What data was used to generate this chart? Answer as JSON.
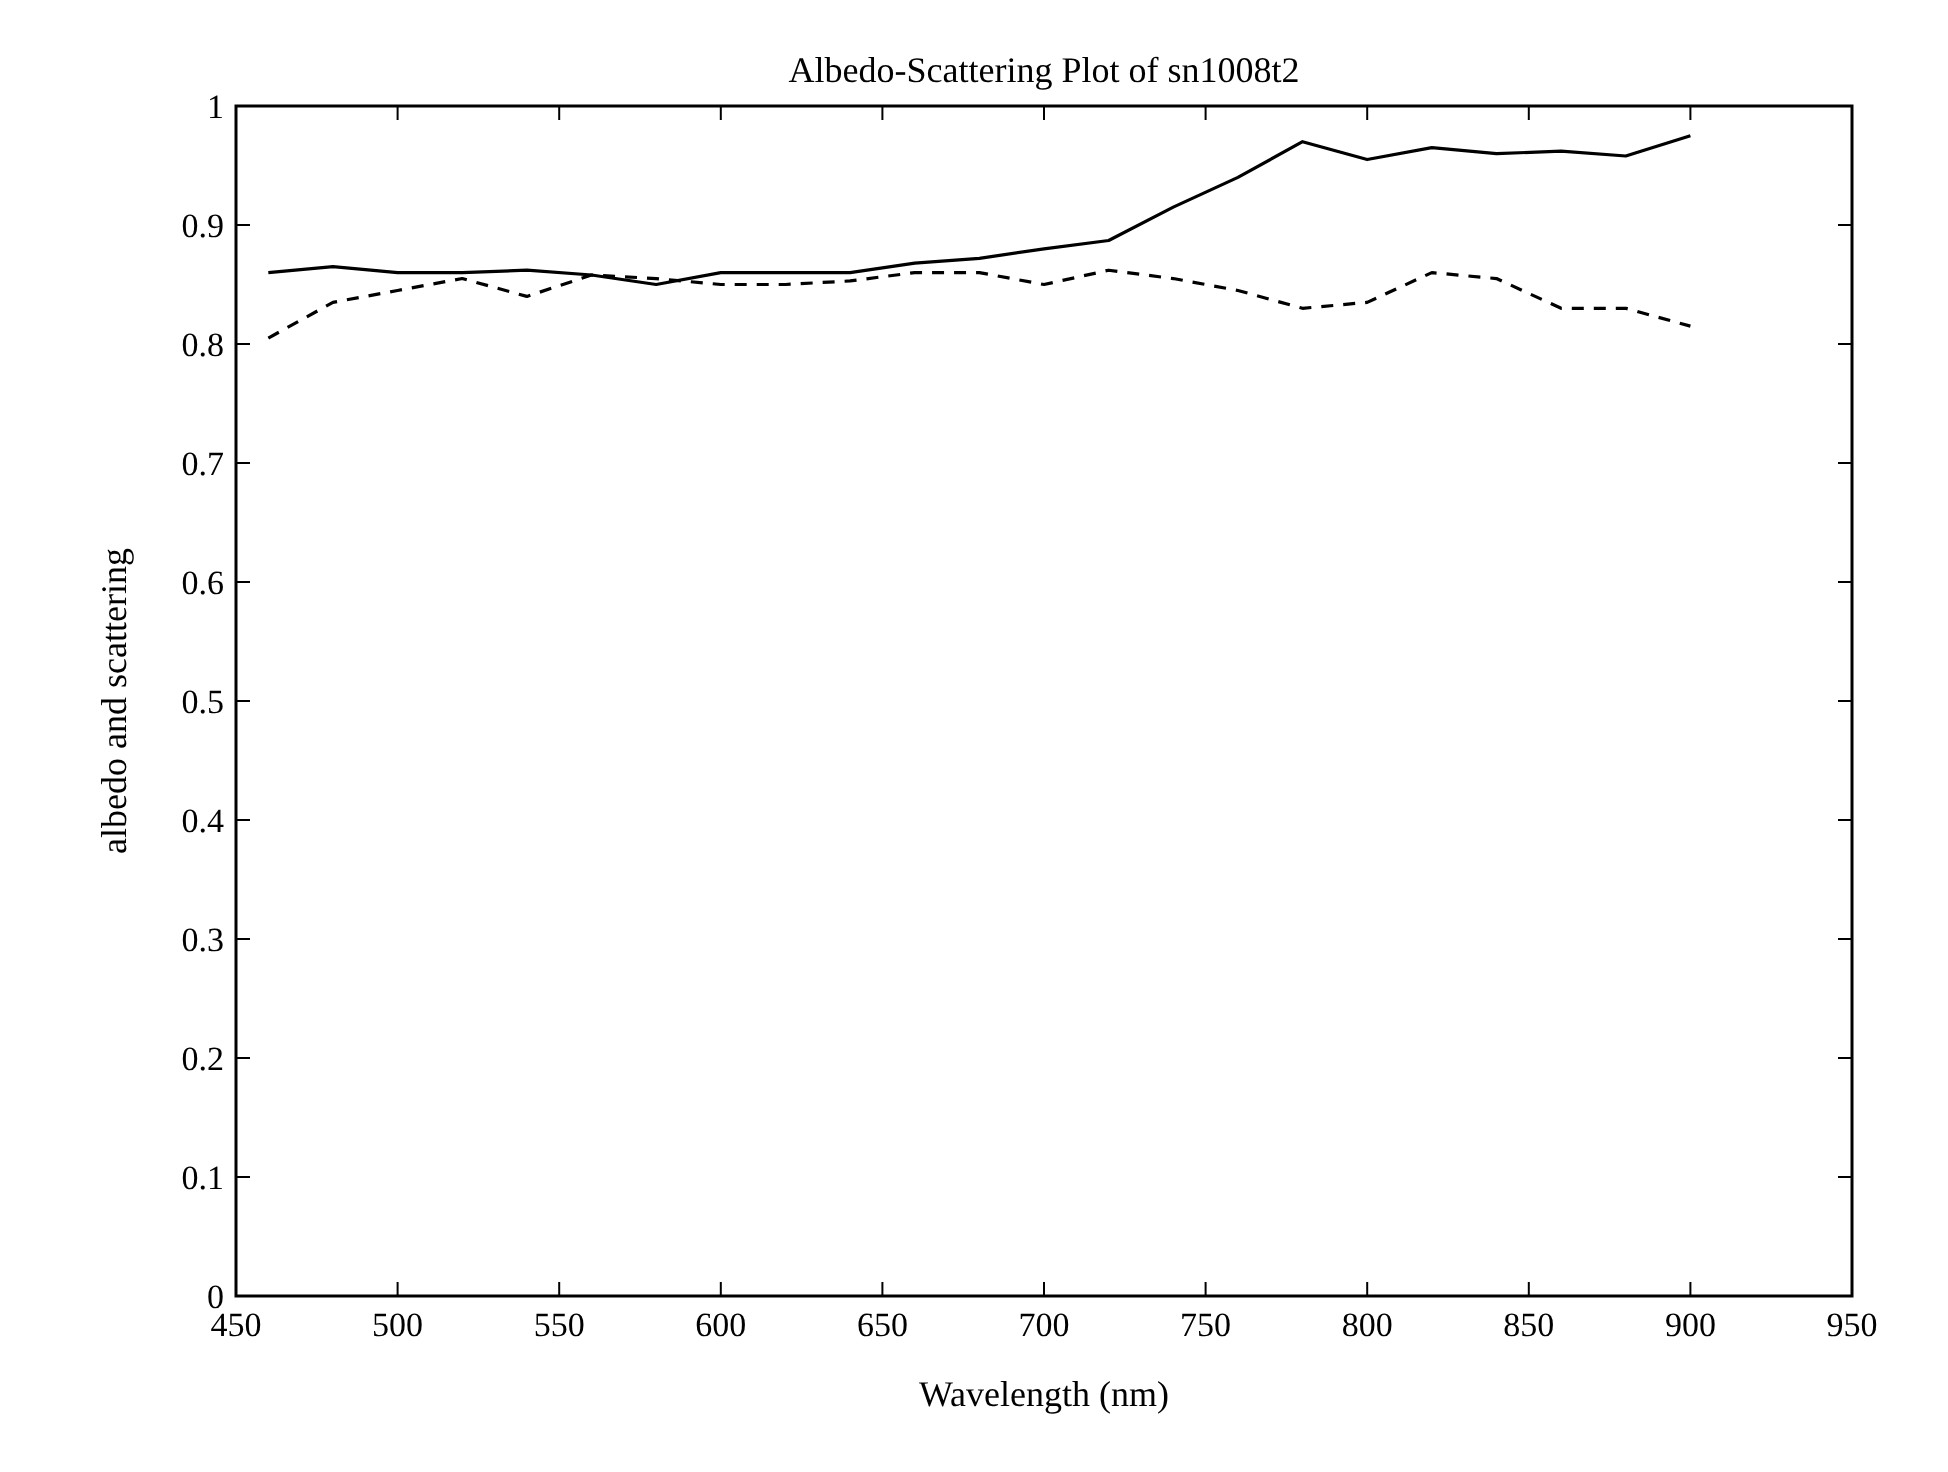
{
  "chart_data": {
    "type": "line",
    "title": "Albedo-Scattering Plot of sn1008t2",
    "xlabel": "Wavelength (nm)",
    "ylabel": "albedo and scattering",
    "x": [
      460,
      480,
      500,
      520,
      540,
      560,
      580,
      600,
      620,
      640,
      660,
      680,
      700,
      720,
      740,
      760,
      780,
      800,
      820,
      840,
      860,
      880,
      900
    ],
    "series": [
      {
        "color": "#000000",
        "line_style": "solid",
        "values": [
          0.86,
          0.865,
          0.86,
          0.86,
          0.862,
          0.858,
          0.85,
          0.86,
          0.86,
          0.86,
          0.868,
          0.872,
          0.88,
          0.887,
          0.915,
          0.94,
          0.97,
          0.955,
          0.965,
          0.96,
          0.962,
          0.958,
          0.975
        ]
      },
      {
        "color": "#000000",
        "line_style": "dashed",
        "values": [
          0.805,
          0.835,
          0.845,
          0.855,
          0.84,
          0.858,
          0.855,
          0.85,
          0.85,
          0.853,
          0.86,
          0.86,
          0.85,
          0.862,
          0.855,
          0.845,
          0.83,
          0.835,
          0.86,
          0.855,
          0.83,
          0.83,
          0.815
        ]
      }
    ],
    "xlim": [
      450,
      950
    ],
    "xticks": [
      450,
      500,
      550,
      600,
      650,
      700,
      750,
      800,
      850,
      900,
      950
    ],
    "ylim": [
      0,
      1
    ],
    "yticks": [
      0,
      0.1,
      0.2,
      0.3,
      0.4,
      0.5,
      0.6,
      0.7,
      0.8,
      0.9,
      1
    ],
    "marker": "none"
  }
}
